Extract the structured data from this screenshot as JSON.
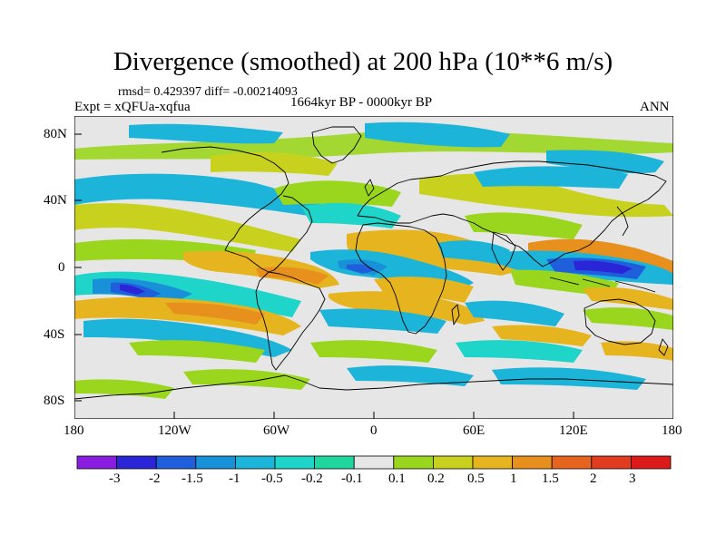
{
  "title": "Divergence (smoothed) at 200 hPa (10**6 m/s)",
  "stats_line": "rmsd= 0.429397 diff= -0.00214093",
  "experiment": "Expt = xQFUa-xqfua",
  "period": "1664kyr BP - 0000kyr BP",
  "season": "ANN",
  "axes": {
    "lon_ticks": [
      "180",
      "120W",
      "60W",
      "0",
      "60E",
      "120E",
      "180"
    ],
    "lat_ticks": [
      "80N",
      "40N",
      "0",
      "40S",
      "80S"
    ]
  },
  "colorbar": {
    "labels": [
      "-3",
      "-2",
      "-1.5",
      "-1",
      "-0.5",
      "-0.2",
      "-0.1",
      "0.1",
      "0.2",
      "0.5",
      "1",
      "1.5",
      "2",
      "3"
    ],
    "colors": [
      "#8a1ee0",
      "#2b25d8",
      "#1f5fdc",
      "#1891d8",
      "#1cb4d8",
      "#1fd4c8",
      "#20d6a0",
      "#e6e6e6",
      "#9bd61e",
      "#c8d21e",
      "#e6b41e",
      "#e8901e",
      "#e6641e",
      "#e23c1e",
      "#dd1a1a"
    ]
  },
  "colors": {
    "neutral": "#e6e6e6",
    "coast": "#000000"
  }
}
